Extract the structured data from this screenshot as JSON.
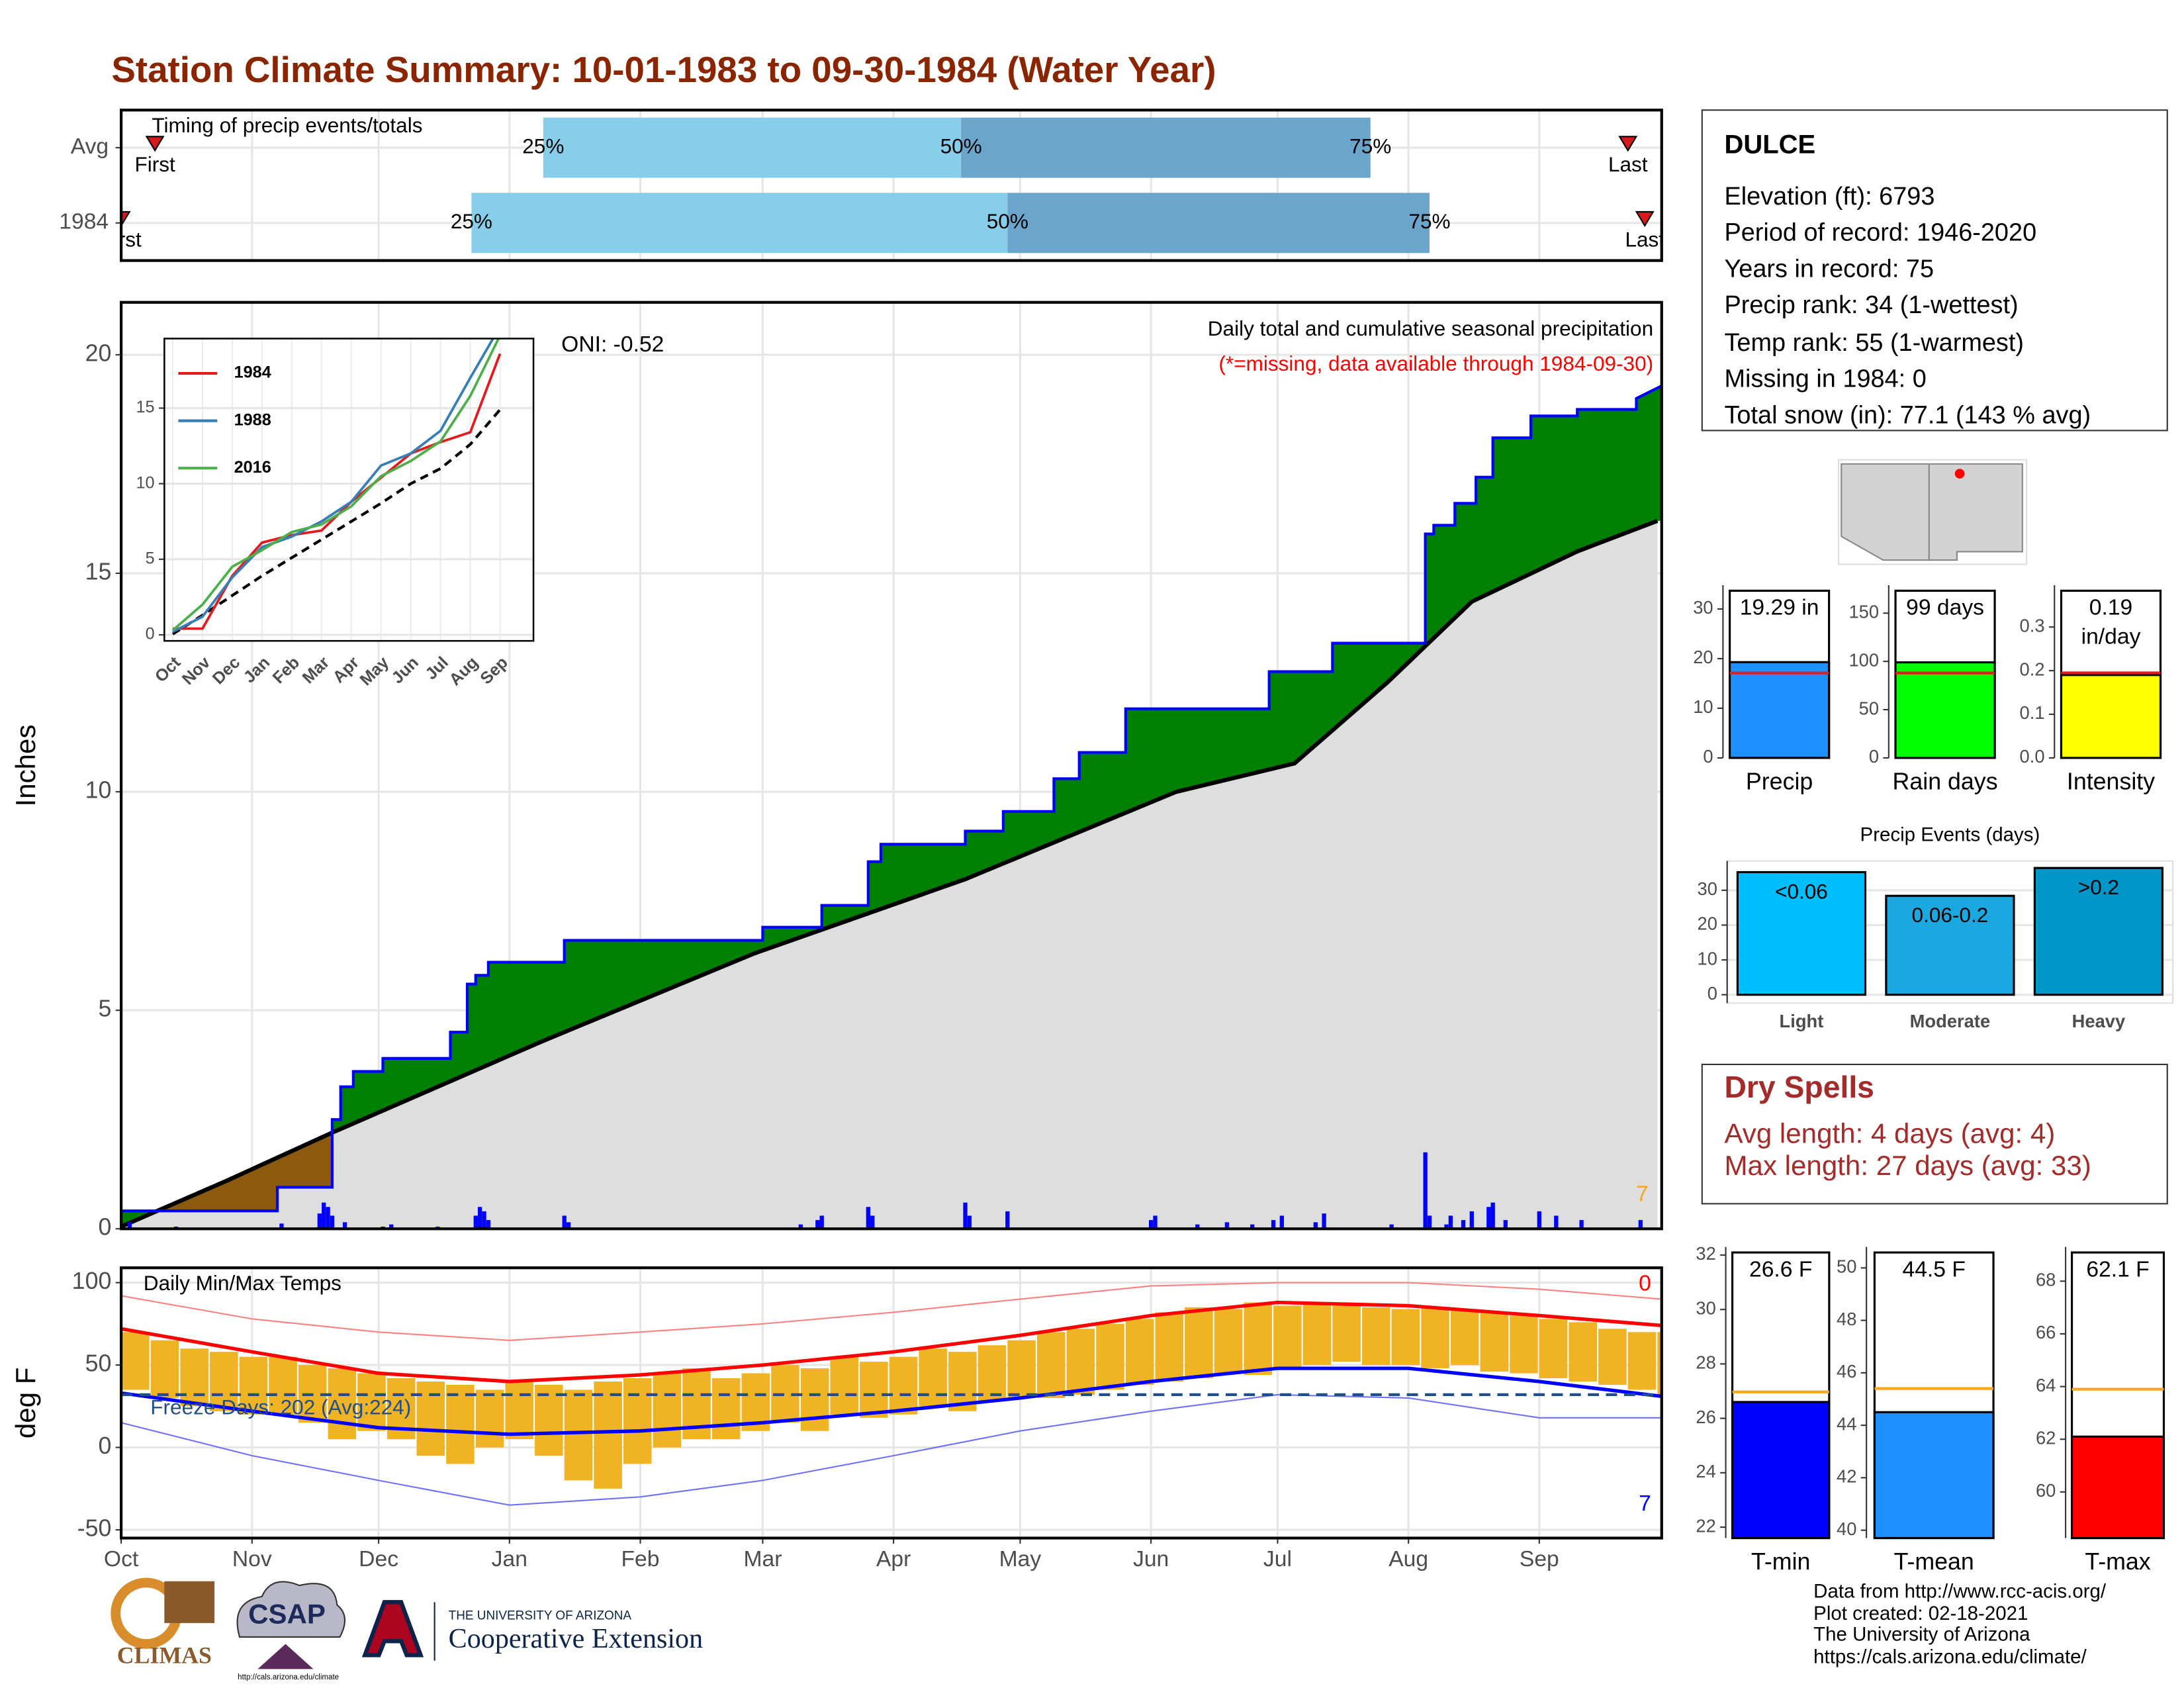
{
  "title": "Station Climate Summary: 10-01-1983 to 09-30-1984 (Water Year)",
  "chart_data": [
    {
      "type": "range-bar",
      "title": "Timing of precip events/totals",
      "categories": [
        "Avg",
        "1984"
      ],
      "first": [
        8,
        0
      ],
      "q25": [
        100,
        83
      ],
      "q50": [
        199,
        210
      ],
      "q75": [
        296,
        310
      ],
      "last": [
        357,
        361
      ],
      "first_label": "First",
      "last_label": "Last",
      "quantile_labels": [
        "25%",
        "50%",
        "75%"
      ],
      "colors": [
        "#87ceeb",
        "#6ba5cc"
      ],
      "marker_color": "#d7191c",
      "xlim": [
        0,
        365
      ]
    },
    {
      "type": "cumulative",
      "ylabel": "Inches",
      "oni": "ONI: -0.52",
      "subtitle": "Daily total and cumulative seasonal precipitation",
      "note": "(*=missing, data available through 1984-09-30)",
      "corner_label": "7",
      "xlim": [
        0,
        365
      ],
      "ylim": [
        0,
        21.2
      ],
      "yticks": [
        0,
        5,
        10,
        15,
        20
      ],
      "grid": true,
      "observed": {
        "color": "#0000ff",
        "x": [
          0,
          37,
          37,
          50,
          50,
          52,
          52,
          55,
          55,
          62,
          62,
          78,
          78,
          82,
          82,
          84,
          84,
          87,
          87,
          105,
          105,
          152,
          152,
          166,
          166,
          177,
          177,
          180,
          180,
          200,
          200,
          209,
          209,
          221,
          221,
          227,
          227,
          238,
          238,
          272,
          272,
          287,
          287,
          309,
          309,
          311,
          311,
          316,
          316,
          321,
          321,
          325,
          325,
          334,
          334,
          345,
          345,
          359,
          359,
          365
        ],
        "values": [
          0.41,
          0.41,
          0.95,
          0.95,
          2.5,
          2.5,
          3.25,
          3.25,
          3.6,
          3.6,
          3.9,
          3.9,
          4.5,
          4.5,
          5.6,
          5.6,
          5.8,
          5.8,
          6.1,
          6.1,
          6.6,
          6.6,
          6.9,
          6.9,
          7.4,
          7.4,
          8.4,
          8.4,
          8.8,
          8.8,
          9.1,
          9.1,
          9.55,
          9.55,
          10.3,
          10.3,
          10.9,
          10.9,
          11.9,
          11.9,
          12.75,
          12.75,
          13.4,
          13.4,
          15.9,
          15.9,
          16.1,
          16.1,
          16.6,
          16.6,
          17.2,
          17.2,
          18.1,
          18.1,
          18.6,
          18.6,
          18.75,
          18.75,
          19.0,
          19.29
        ]
      },
      "average": {
        "color": "#000000",
        "x": [
          0,
          25,
          50,
          100,
          150,
          200,
          250,
          278,
          300,
          320,
          345,
          364
        ],
        "values": [
          0.05,
          1.1,
          2.2,
          4.3,
          6.3,
          8.0,
          10.0,
          10.65,
          12.5,
          14.35,
          15.5,
          16.2
        ]
      },
      "above_color": "#008000",
      "below_color": "#8b5a0e",
      "fill_color": "#dedede",
      "daily": {
        "color": "#0000ff",
        "x": [
          2,
          13,
          38,
          47,
          48,
          49,
          50,
          53,
          62,
          64,
          75,
          84,
          85,
          86,
          87,
          105,
          106,
          161,
          165,
          166,
          177,
          178,
          200,
          201,
          210,
          244,
          245,
          255,
          262,
          268,
          273,
          275,
          283,
          285,
          301,
          309,
          310,
          314,
          315,
          318,
          320,
          324,
          325,
          328,
          336,
          340,
          346,
          360
        ],
        "values": [
          0.15,
          0.05,
          0.12,
          0.35,
          0.6,
          0.5,
          0.3,
          0.15,
          0.05,
          0.1,
          0.05,
          0.3,
          0.5,
          0.4,
          0.2,
          0.3,
          0.15,
          0.1,
          0.2,
          0.3,
          0.5,
          0.3,
          0.6,
          0.3,
          0.4,
          0.2,
          0.3,
          0.1,
          0.15,
          0.1,
          0.2,
          0.3,
          0.15,
          0.35,
          0.1,
          1.75,
          0.3,
          0.1,
          0.3,
          0.2,
          0.4,
          0.5,
          0.6,
          0.2,
          0.4,
          0.3,
          0.2,
          0.2
        ]
      }
    },
    {
      "type": "line",
      "categories": [
        "Oct",
        "Nov",
        "Dec",
        "Jan",
        "Feb",
        "Mar",
        "Apr",
        "May",
        "Jun",
        "Jul",
        "Aug",
        "Sep"
      ],
      "ylim": [
        -0.4,
        19.6
      ],
      "yticks": [
        0,
        5,
        10,
        15
      ],
      "grid": true,
      "series": [
        {
          "name": "1984",
          "color": "#e41a1c",
          "values": [
            0.41,
            0.41,
            3.9,
            6.1,
            6.6,
            6.9,
            8.8,
            10.4,
            12.0,
            12.75,
            13.4,
            18.6
          ]
        },
        {
          "name": "1988",
          "color": "#377eb8",
          "values": [
            0.2,
            1.2,
            3.8,
            5.8,
            6.5,
            7.5,
            8.8,
            11.2,
            12.0,
            13.5,
            17.0,
            20.4
          ]
        },
        {
          "name": "2016",
          "color": "#4daf4a",
          "values": [
            0.3,
            2.0,
            4.5,
            5.6,
            6.8,
            7.3,
            8.5,
            10.5,
            11.5,
            12.8,
            15.8,
            19.8
          ]
        }
      ],
      "average": {
        "color": "#000000",
        "values": [
          0.05,
          1.3,
          2.6,
          3.9,
          5.1,
          6.3,
          7.5,
          8.7,
          10.0,
          11.0,
          12.6,
          14.9
        ]
      }
    },
    {
      "type": "temperature",
      "title": "Daily Min/Max Temps",
      "ylabel": "deg F",
      "freeze_label": "Freeze Days: 202 (Avg:224)",
      "freeze_threshold": 32,
      "freeze_color": "#1f4e8c",
      "corner_labels": [
        "0",
        "7"
      ],
      "xlim": [
        0,
        365
      ],
      "ylim": [
        -55,
        109
      ],
      "yticks": [
        -50,
        0,
        50,
        100
      ],
      "grid": true,
      "xticks": [
        {
          "value": 0,
          "label": "Oct"
        },
        {
          "value": 31,
          "label": "Nov"
        },
        {
          "value": 61,
          "label": "Dec"
        },
        {
          "value": 92,
          "label": "Jan"
        },
        {
          "value": 123,
          "label": "Feb"
        },
        {
          "value": 152,
          "label": "Mar"
        },
        {
          "value": 183,
          "label": "Apr"
        },
        {
          "value": 213,
          "label": "May"
        },
        {
          "value": 244,
          "label": "Jun"
        },
        {
          "value": 274,
          "label": "Jul"
        },
        {
          "value": 305,
          "label": "Aug"
        },
        {
          "value": 336,
          "label": "Sep"
        }
      ],
      "daily": {
        "color": "#f0b323",
        "x": [
          0,
          7,
          14,
          21,
          28,
          35,
          42,
          49,
          56,
          63,
          70,
          77,
          84,
          91,
          98,
          105,
          112,
          119,
          126,
          133,
          140,
          147,
          154,
          161,
          168,
          175,
          182,
          189,
          196,
          203,
          210,
          217,
          224,
          231,
          238,
          245,
          252,
          259,
          266,
          273,
          280,
          287,
          294,
          301,
          308,
          315,
          322,
          329,
          336,
          343,
          350,
          357,
          364
        ],
        "high": [
          70,
          65,
          60,
          58,
          55,
          55,
          50,
          48,
          45,
          42,
          40,
          38,
          35,
          40,
          38,
          35,
          40,
          42,
          45,
          48,
          42,
          45,
          50,
          48,
          55,
          52,
          55,
          60,
          58,
          62,
          65,
          70,
          72,
          75,
          78,
          82,
          85,
          84,
          88,
          86,
          88,
          86,
          85,
          84,
          85,
          84,
          82,
          80,
          78,
          76,
          72,
          70,
          70
        ],
        "low": [
          35,
          30,
          25,
          22,
          20,
          20,
          15,
          5,
          10,
          5,
          -5,
          -10,
          0,
          5,
          -5,
          -20,
          -25,
          -10,
          0,
          5,
          5,
          10,
          15,
          10,
          20,
          18,
          20,
          25,
          22,
          28,
          30,
          30,
          32,
          35,
          38,
          40,
          42,
          45,
          44,
          48,
          50,
          52,
          50,
          50,
          48,
          50,
          46,
          45,
          42,
          40,
          38,
          35,
          32
        ]
      },
      "normals": {
        "x": [
          0,
          31,
          61,
          92,
          123,
          152,
          183,
          213,
          244,
          274,
          305,
          336,
          365
        ],
        "max": [
          72,
          58,
          45,
          40,
          44,
          50,
          58,
          68,
          80,
          88,
          86,
          80,
          74
        ],
        "min": [
          33,
          22,
          12,
          8,
          10,
          15,
          22,
          30,
          40,
          48,
          48,
          40,
          31
        ],
        "record_max": [
          92,
          78,
          70,
          65,
          70,
          75,
          82,
          90,
          98,
          100,
          100,
          96,
          90
        ],
        "record_min": [
          15,
          -5,
          -20,
          -35,
          -30,
          -20,
          -5,
          10,
          22,
          32,
          30,
          18,
          18
        ],
        "max_color": "#ff0000",
        "min_color": "#0000ff",
        "record_max_color": "#ff8080",
        "record_min_color": "#7070ff"
      }
    },
    {
      "type": "bar",
      "categories": [
        "Precip"
      ],
      "values": [
        19.29
      ],
      "value_labels": [
        "19.29 in"
      ],
      "reference": [
        17.1
      ],
      "reference_color": "#e41a1c",
      "color": "#1e90ff",
      "ylim": [
        0,
        34.8
      ],
      "yticks": [
        0,
        10,
        20,
        30
      ]
    },
    {
      "type": "bar",
      "categories": [
        "Rain days"
      ],
      "values": [
        99
      ],
      "value_labels": [
        "99 days"
      ],
      "reference": [
        88
      ],
      "reference_color": "#e41a1c",
      "color": "#00ff00",
      "ylim": [
        0,
        179
      ],
      "yticks": [
        0,
        50,
        100,
        150
      ]
    },
    {
      "type": "bar",
      "categories": [
        "Intensity"
      ],
      "values": [
        0.19
      ],
      "value_labels": [
        "0.19\nin/day"
      ],
      "reference": [
        0.195
      ],
      "reference_color": "#e41a1c",
      "color": "#ffff00",
      "ylim": [
        0,
        0.396
      ],
      "yticks": [
        {
          "value": 0,
          "label": "0.0"
        },
        0.1,
        0.2,
        0.3
      ]
    },
    {
      "type": "bar",
      "title": "Precip Events (days)",
      "categories": [
        "Light",
        "Moderate",
        "Heavy"
      ],
      "values": [
        35.2,
        28.4,
        36.4
      ],
      "bar_labels": [
        "<0.06",
        "0.06-0.2",
        ">0.2"
      ],
      "colors": [
        "#00bfff",
        "#1ba8e0",
        "#0096c8"
      ],
      "ylim": [
        -2.4,
        38.4
      ],
      "yticks": [
        0,
        10,
        20,
        30
      ],
      "grid": true
    },
    {
      "type": "bar",
      "categories": [
        "T-min"
      ],
      "values": [
        26.6
      ],
      "value_labels": [
        "26.6 F"
      ],
      "reference": [
        26.97
      ],
      "reference_color": "#f5a623",
      "color": "#0000ff",
      "ylim": [
        21.6,
        32.3
      ],
      "yticks": [
        22,
        24,
        26,
        28,
        30,
        32
      ]
    },
    {
      "type": "bar",
      "categories": [
        "T-mean"
      ],
      "values": [
        44.5
      ],
      "value_labels": [
        "44.5 F"
      ],
      "reference": [
        45.4
      ],
      "reference_color": "#f5a623",
      "color": "#1e90ff",
      "ylim": [
        39.7,
        50.8
      ],
      "yticks": [
        40,
        42,
        44,
        46,
        48,
        50
      ]
    },
    {
      "type": "bar",
      "categories": [
        "T-max"
      ],
      "values": [
        62.1
      ],
      "value_labels": [
        "62.1 F"
      ],
      "reference": [
        63.9
      ],
      "reference_color": "#f5a623",
      "color": "#ff0000",
      "ylim": [
        58.25,
        69.3
      ],
      "yticks": [
        60,
        62,
        64,
        66,
        68
      ]
    }
  ],
  "station": {
    "name": "DULCE",
    "lines": [
      "Elevation (ft): 6793",
      "Period of record: 1946-2020",
      "Years in record: 75",
      "Precip rank: 34 (1-wettest)",
      "Temp rank: 55 (1-warmest)",
      "Missing in 1984: 0",
      "Total snow (in): 77.1 (143 % avg)"
    ]
  },
  "dry_spells": {
    "title": "Dry Spells",
    "lines": [
      "Avg length: 4 days (avg: 4)",
      "Max length: 27 days (avg: 33)"
    ]
  },
  "footer": {
    "climas": "CLIMAS",
    "csap": "CSAP",
    "csap_url": "http://cals.arizona.edu/climate",
    "university": "THE UNIVERSITY OF ARIZONA",
    "extension": "Cooperative Extension",
    "credits": [
      "Data from http://www.rcc-acis.org/",
      "Plot created: 02-18-2021",
      "The University of Arizona",
      "https://cals.arizona.edu/climate/"
    ]
  }
}
